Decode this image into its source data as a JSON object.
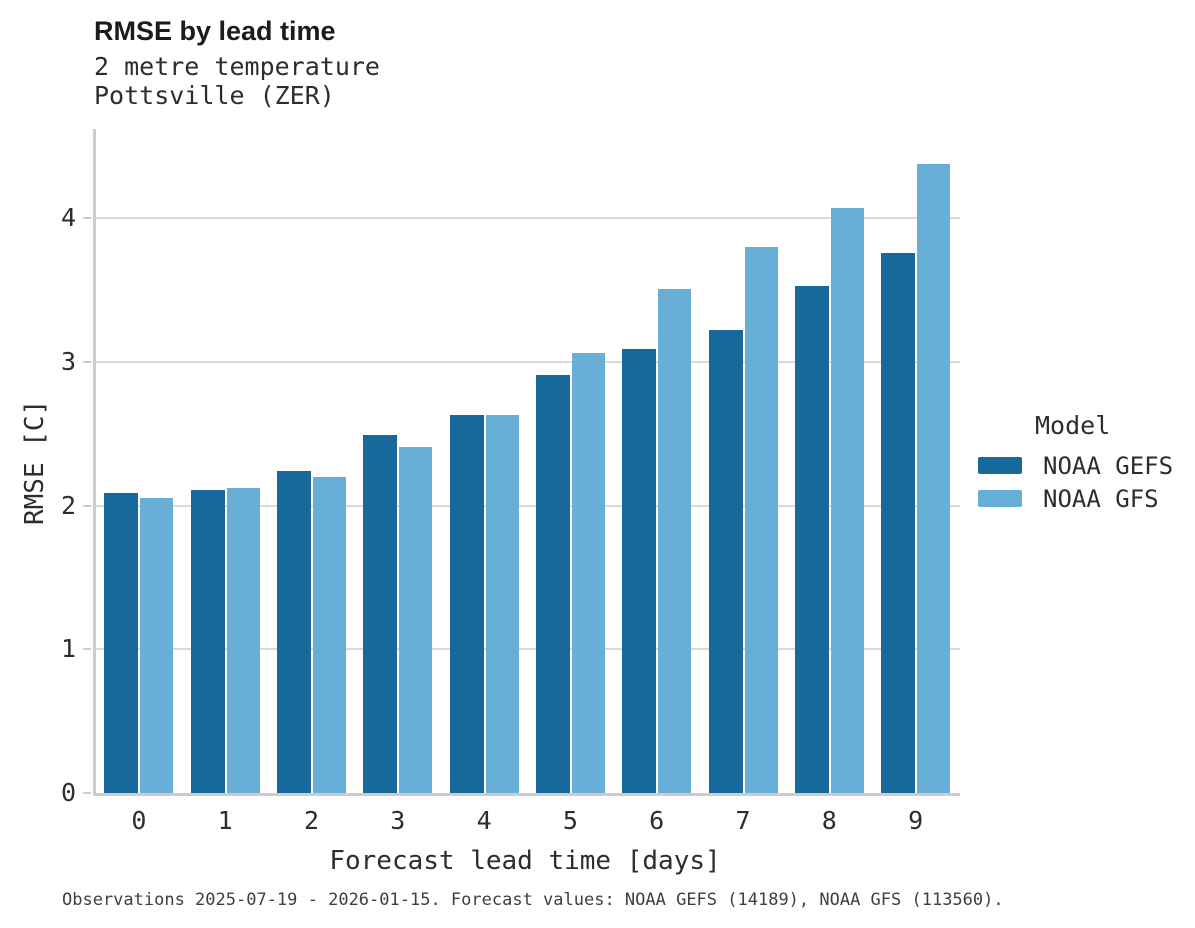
{
  "title": "RMSE by lead time",
  "subtitle_line1": "2 metre temperature",
  "subtitle_line2": "Pottsville (ZER)",
  "caption": "Observations 2025-07-19 - 2026-01-15. Forecast values: NOAA GEFS (14189), NOAA GFS (113560).",
  "legend": {
    "title": "Model",
    "entries": [
      {
        "label": "NOAA GEFS",
        "color": "#17699c"
      },
      {
        "label": "NOAA GFS",
        "color": "#68afd7"
      }
    ]
  },
  "colors": {
    "noaa_gefs": "#17699c",
    "noaa_gfs": "#68afd7",
    "gridline": "#d9d9d9",
    "axis_spine": "#cccccc",
    "text_dark": "#1c1c1c",
    "text_body": "#2d2d2d"
  },
  "chart_data": {
    "type": "bar",
    "title": "RMSE by lead time",
    "subtitle": [
      "2 metre temperature",
      "Pottsville (ZER)"
    ],
    "categories": [
      "0",
      "1",
      "2",
      "3",
      "4",
      "5",
      "6",
      "7",
      "8",
      "9"
    ],
    "series": [
      {
        "name": "NOAA GEFS",
        "color": "#17699c",
        "values": [
          2.09,
          2.11,
          2.24,
          2.49,
          2.63,
          2.91,
          3.09,
          3.22,
          3.53,
          3.76
        ]
      },
      {
        "name": "NOAA GFS",
        "color": "#68afd7",
        "values": [
          2.05,
          2.12,
          2.2,
          2.41,
          2.63,
          3.06,
          3.51,
          3.8,
          4.07,
          4.38
        ]
      }
    ],
    "xlabel": "Forecast lead time [days]",
    "ylabel": "RMSE [C]",
    "ylim": [
      0,
      4.62
    ],
    "yticks": [
      0,
      1,
      2,
      3,
      4
    ],
    "grid": true,
    "legend_title": "Model",
    "legend_position": "right",
    "footnote": "Observations 2025-07-19 - 2026-01-15. Forecast values: NOAA GEFS (14189), NOAA GFS (113560)."
  }
}
